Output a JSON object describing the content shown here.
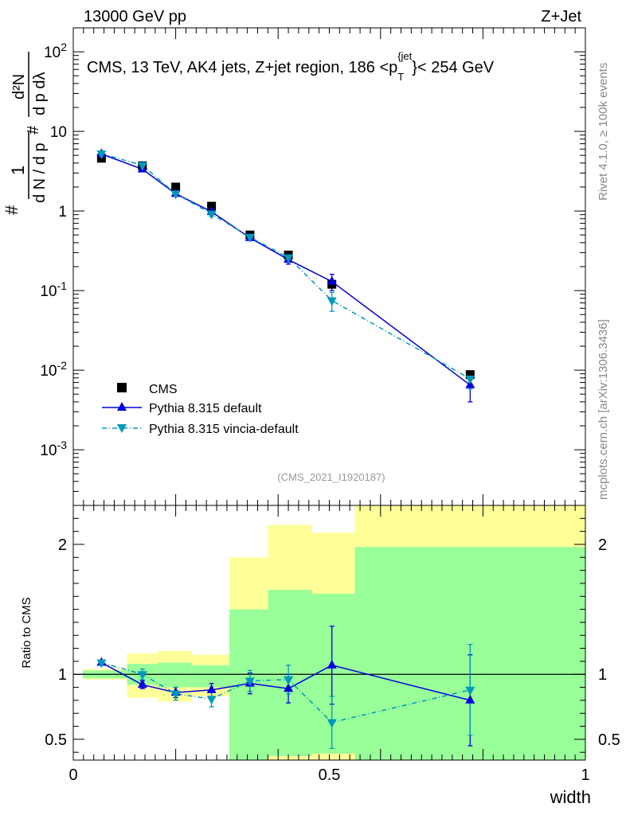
{
  "header": {
    "left": "13000 GeV pp",
    "right": "Z+Jet"
  },
  "title": "CMS, 13 TeV, AK4 jets, Z+jet region, 186 <p_T^{jet}< 254 GeV",
  "title_parts": {
    "pre": "CMS, 13 TeV, AK4 jets, Z+jet region, 186 <p",
    "sub": "T",
    "sup": "{jet",
    "post": "}< 254 GeV"
  },
  "side_labels": {
    "rivet": "Rivet 4.1.0, ≥ 100k events",
    "mcplots": "mcplots.cern.ch [arXiv:1306.3436]"
  },
  "analysis_id": "(CMS_2021_I1920187)",
  "ylabel_main": "1/N dN/dp_T dλ",
  "ylabel_ratio": "Ratio to CMS",
  "xlabel": "width",
  "colors": {
    "cms": "#000000",
    "default": "#0000dd",
    "vincia": "#0099bb",
    "band_outer": "#ffff99",
    "band_inner": "#99ff99"
  },
  "legend": [
    {
      "label": "CMS",
      "marker": "square"
    },
    {
      "label": "Pythia 8.315 default",
      "marker": "triangle-up"
    },
    {
      "label": "Pythia 8.315 vincia-default",
      "marker": "triangle-down"
    }
  ],
  "chart_data": [
    {
      "type": "scatter",
      "panel": "main",
      "yscale": "log",
      "xlim": [
        0,
        1
      ],
      "ylim": [
        0.0002,
        200
      ],
      "y_ticks": [
        "10^-3",
        "10^-2",
        "10^-1",
        "1",
        "10",
        "10^2"
      ],
      "x": [
        0.055,
        0.135,
        0.2,
        0.27,
        0.345,
        0.42,
        0.505,
        0.775
      ],
      "x_edges": [
        0,
        0.105,
        0.165,
        0.23,
        0.305,
        0.38,
        0.465,
        0.55,
        1.0
      ],
      "series": [
        {
          "name": "CMS",
          "values": [
            4.6,
            3.7,
            2.0,
            1.15,
            0.5,
            0.28,
            0.12,
            0.0088
          ]
        },
        {
          "name": "Pythia 8.315 default",
          "values": [
            5.2,
            3.35,
            1.65,
            0.98,
            0.46,
            0.245,
            0.13,
            0.0065
          ],
          "errors": [
            0.15,
            0.12,
            0.08,
            0.05,
            0.03,
            0.03,
            0.03,
            0.0025
          ]
        },
        {
          "name": "Pythia 8.315 vincia-default",
          "values": [
            5.25,
            3.75,
            1.65,
            0.92,
            0.47,
            0.26,
            0.075,
            0.0078
          ],
          "errors": [
            0.15,
            0.12,
            0.08,
            0.06,
            0.03,
            0.03,
            0.02,
            0.002
          ]
        }
      ]
    },
    {
      "type": "scatter",
      "panel": "ratio",
      "ylabel": "Ratio to CMS",
      "xlabel": "width",
      "xlim": [
        0,
        1
      ],
      "ylim": [
        0.34,
        2.3
      ],
      "y_ticks": [
        0.5,
        1,
        2
      ],
      "x_ticks": [
        0,
        0.5,
        1
      ],
      "x": [
        0.055,
        0.135,
        0.2,
        0.27,
        0.345,
        0.42,
        0.505,
        0.775
      ],
      "reference_line": 1,
      "bands": {
        "x_edges": [
          0,
          0.105,
          0.165,
          0.23,
          0.305,
          0.38,
          0.465,
          0.55,
          1.0
        ],
        "inner_low": [
          0.97,
          0.92,
          0.9,
          0.9,
          0.34,
          0.37,
          0.39,
          0.34
        ],
        "inner_high": [
          1.03,
          1.08,
          1.09,
          1.07,
          1.5,
          1.65,
          1.62,
          1.98
        ],
        "outer_low": [
          0.96,
          0.82,
          0.79,
          0.83,
          0.34,
          0.34,
          0.34,
          0.34
        ],
        "outer_high": [
          1.04,
          1.16,
          1.18,
          1.15,
          1.9,
          2.15,
          2.09,
          2.3
        ]
      },
      "series": [
        {
          "name": "Pythia 8.315 default",
          "values": [
            1.09,
            0.92,
            0.86,
            0.88,
            0.93,
            0.89,
            1.07,
            0.8
          ],
          "errors": [
            0.02,
            0.03,
            0.04,
            0.05,
            0.08,
            0.11,
            0.3,
            0.35
          ]
        },
        {
          "name": "Pythia 8.315 vincia-default",
          "values": [
            1.09,
            1.0,
            0.85,
            0.81,
            0.95,
            0.96,
            0.63,
            0.88
          ],
          "errors": [
            0.02,
            0.04,
            0.05,
            0.06,
            0.08,
            0.11,
            0.2,
            0.35
          ]
        }
      ]
    }
  ]
}
